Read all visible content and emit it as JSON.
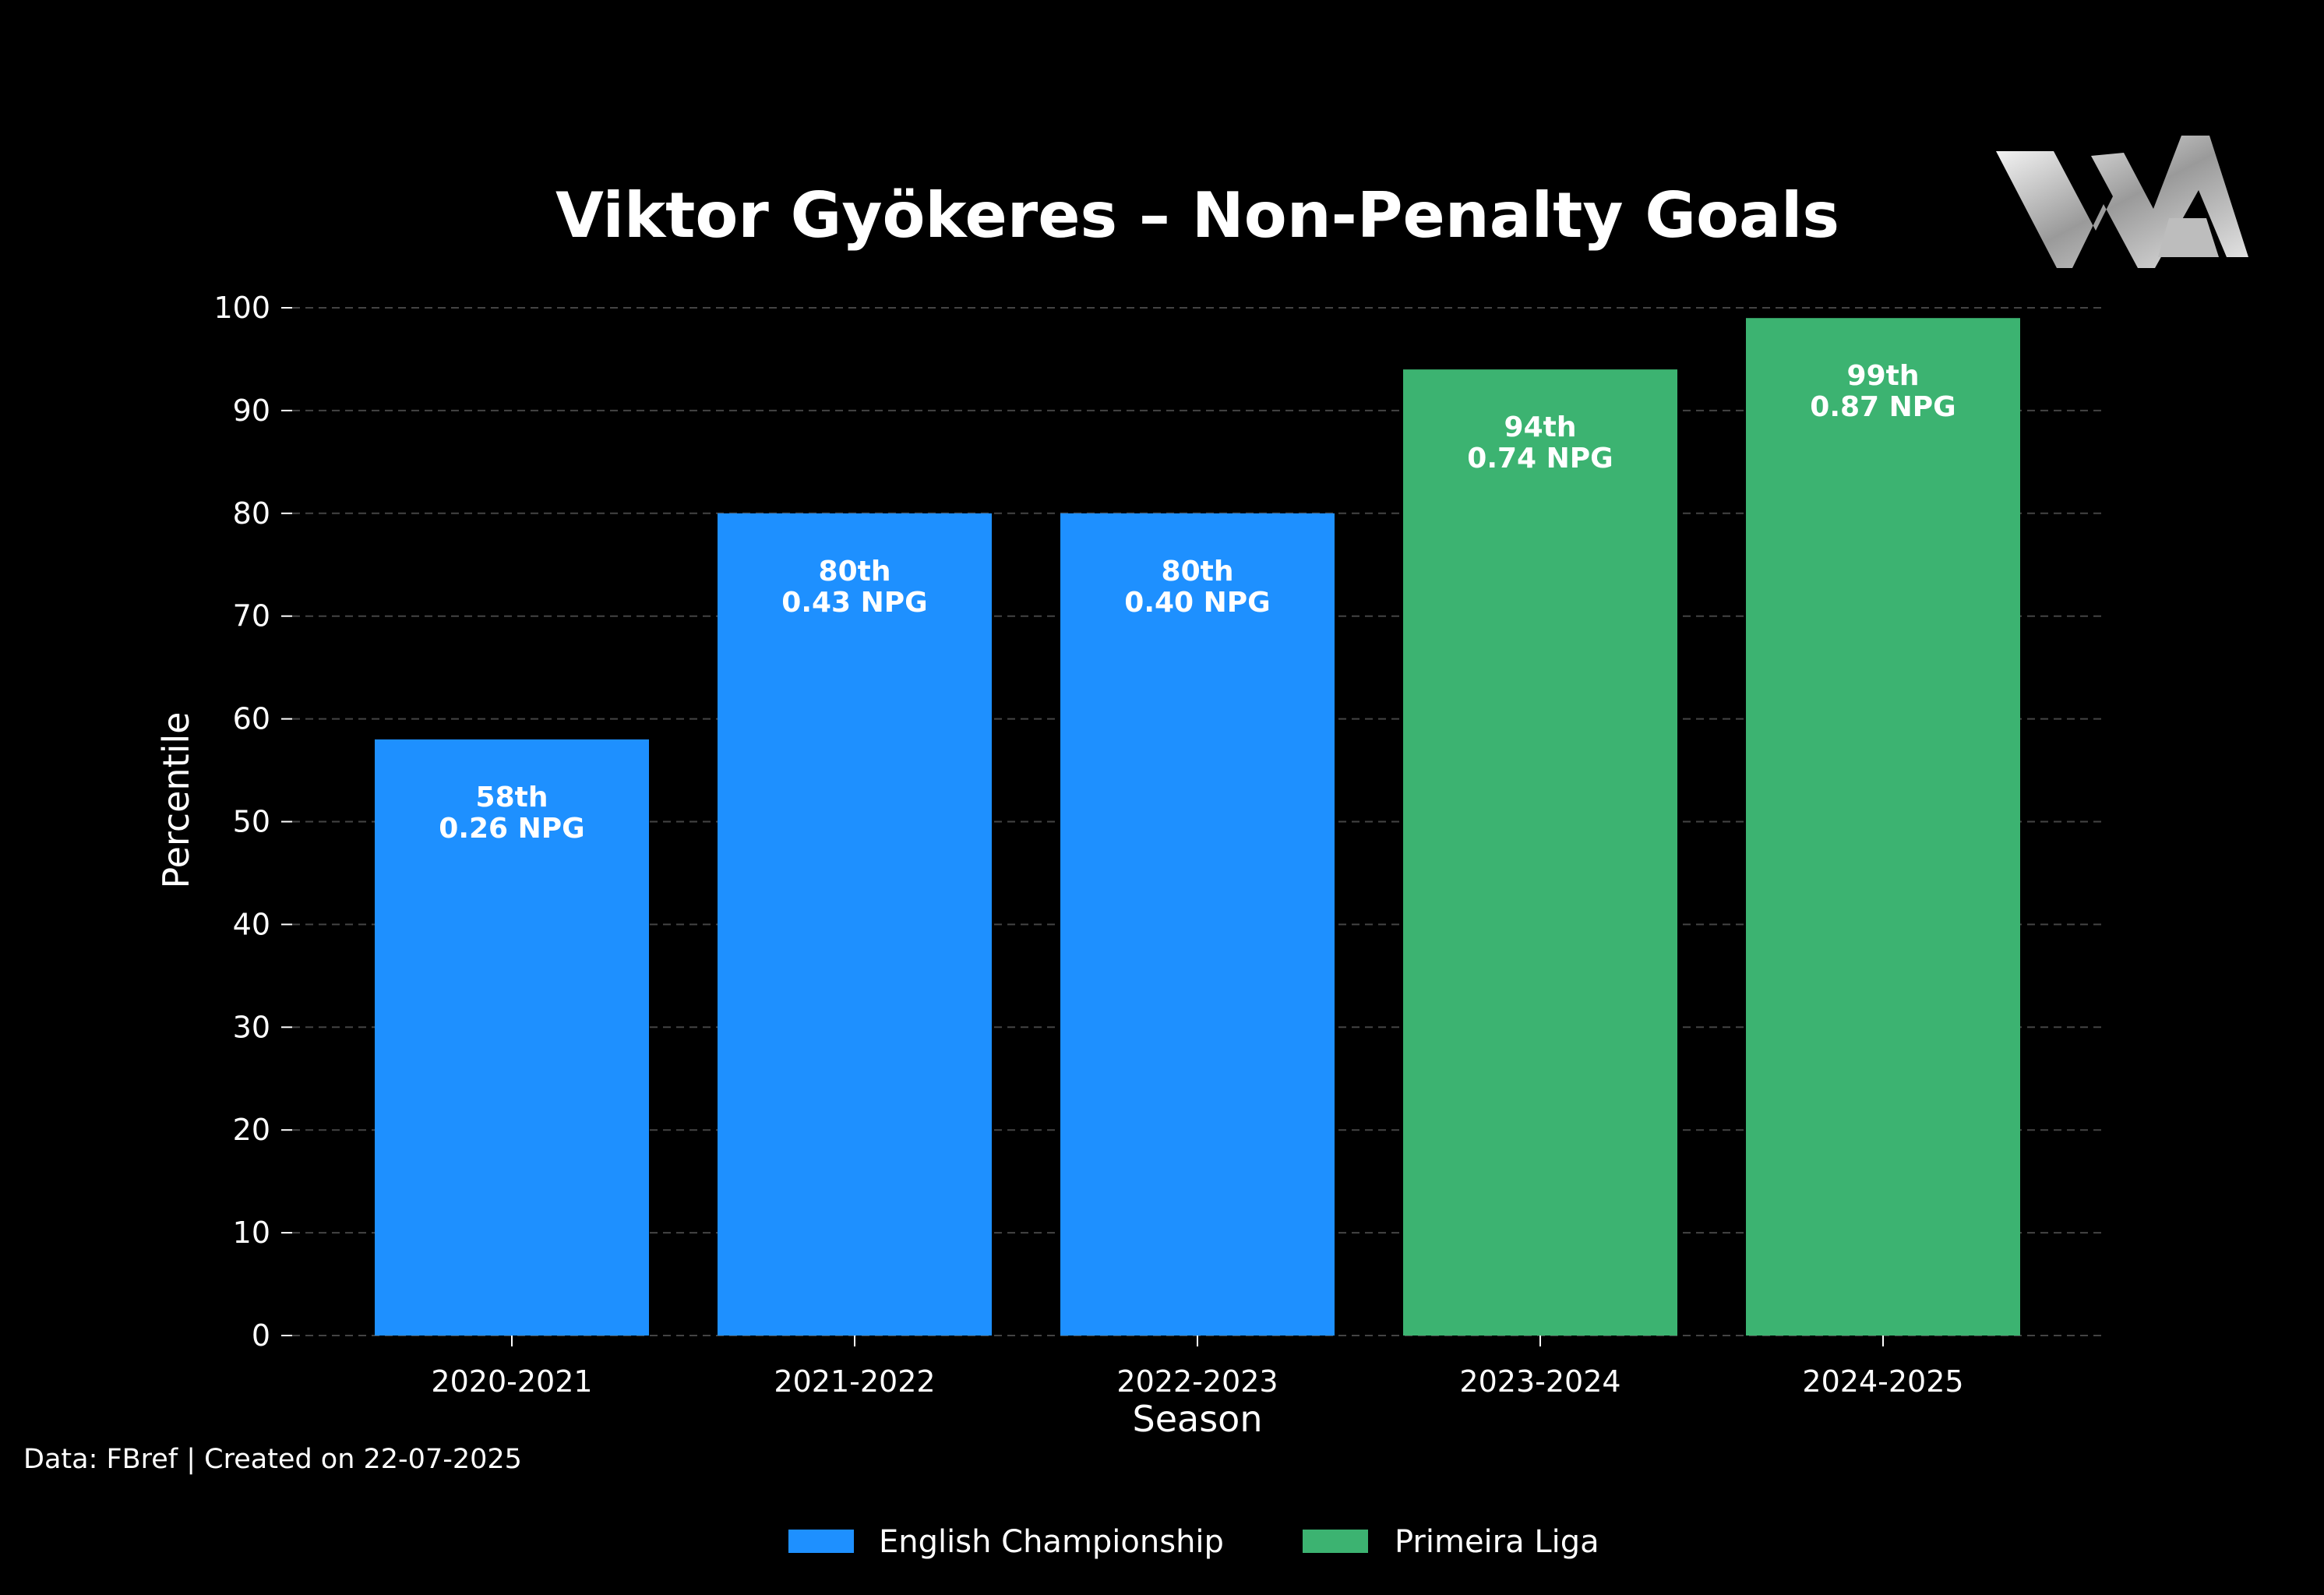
{
  "chart_data": {
    "type": "bar",
    "title": "Viktor Gyökeres – Non-Penalty Goals",
    "xlabel": "Season",
    "ylabel": "Percentile",
    "ylim": [
      0,
      100
    ],
    "yticks": [
      0,
      10,
      20,
      30,
      40,
      50,
      60,
      70,
      80,
      90,
      100
    ],
    "grid": "horizontal-dashed",
    "categories": [
      "2020-2021",
      "2021-2022",
      "2022-2023",
      "2023-2024",
      "2024-2025"
    ],
    "values": [
      58,
      80,
      80,
      94,
      99
    ],
    "bar_labels": [
      {
        "rank": "58th",
        "npg": "0.26 NPG"
      },
      {
        "rank": "80th",
        "npg": "0.43 NPG"
      },
      {
        "rank": "80th",
        "npg": "0.40 NPG"
      },
      {
        "rank": "94th",
        "npg": "0.74 NPG"
      },
      {
        "rank": "99th",
        "npg": "0.87 NPG"
      }
    ],
    "bar_league": [
      0,
      0,
      0,
      1,
      1
    ],
    "legend": {
      "placement": "bottom-center",
      "entries": [
        {
          "name": "English Championship",
          "color": "#1e90ff"
        },
        {
          "name": "Primeira Liga",
          "color": "#3cb371"
        }
      ]
    },
    "source_note": "Data: FBref | Created on 22-07-2025",
    "logo_text": "WA"
  },
  "colors": {
    "background": "#000000",
    "grid": "#444444",
    "text": "#ffffff"
  }
}
